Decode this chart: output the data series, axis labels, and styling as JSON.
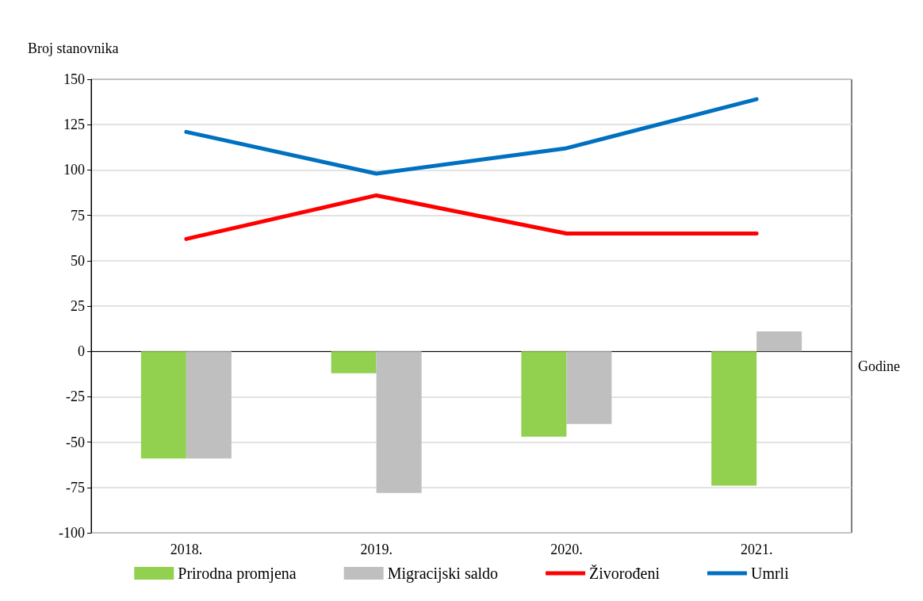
{
  "chart_data": {
    "type": "bar",
    "ylabel": "Broj stanovnika",
    "xlabel": "Godine",
    "categories": [
      "2018.",
      "2019.",
      "2020.",
      "2021."
    ],
    "series": [
      {
        "name": "Prirodna promjena",
        "color": "#92d050",
        "values": [
          -59,
          -12,
          -47,
          -74
        ]
      },
      {
        "name": "Migracijski saldo",
        "color": "#bfbfbf",
        "values": [
          -59,
          -78,
          -40,
          11
        ]
      },
      {
        "name": "Živorođeni",
        "type": "line",
        "color": "#ff0000",
        "values": [
          62,
          86,
          65,
          65
        ]
      },
      {
        "name": "Umrli",
        "type": "line",
        "color": "#0070c0",
        "values": [
          121,
          98,
          112,
          139
        ]
      }
    ],
    "ylim": [
      -100,
      150
    ],
    "yticks": [
      -100,
      -75,
      -50,
      -25,
      0,
      25,
      50,
      75,
      100,
      125,
      150
    ],
    "grid": "y",
    "legend": "bottom",
    "marker": "none",
    "line_style": "solid"
  }
}
